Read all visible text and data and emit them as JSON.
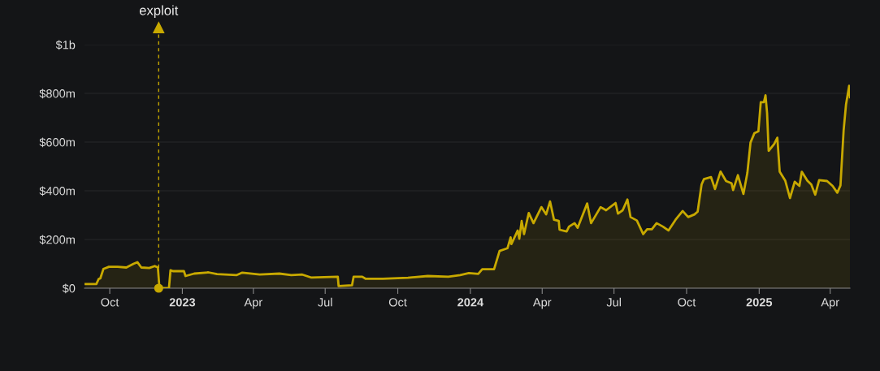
{
  "chart_data": {
    "type": "area",
    "x": [
      "2022-08-31",
      "2022-09-14",
      "2022-09-17",
      "2022-09-19",
      "2022-09-23",
      "2022-09-30",
      "2022-10-11",
      "2022-10-22",
      "2022-10-31",
      "2022-11-05",
      "2022-11-10",
      "2022-11-20",
      "2022-11-27",
      "2022-12-01",
      "2022-12-03",
      "2022-12-15",
      "2022-12-17",
      "2022-12-20",
      "2023-01-03",
      "2023-01-05",
      "2023-01-16",
      "2023-02-03",
      "2023-02-14",
      "2023-03-11",
      "2023-03-18",
      "2023-04-09",
      "2023-05-04",
      "2023-05-19",
      "2023-06-02",
      "2023-06-13",
      "2023-07-17",
      "2023-07-18",
      "2023-08-04",
      "2023-08-06",
      "2023-08-17",
      "2023-08-21",
      "2023-09-12",
      "2023-10-14",
      "2023-11-08",
      "2023-12-04",
      "2023-12-19",
      "2023-12-30",
      "2024-01-11",
      "2024-01-16",
      "2024-01-31",
      "2024-02-07",
      "2024-02-17",
      "2024-02-21",
      "2024-02-22",
      "2024-03-01",
      "2024-03-03",
      "2024-03-06",
      "2024-03-09",
      "2024-03-15",
      "2024-03-21",
      "2024-03-31",
      "2024-04-06",
      "2024-04-11",
      "2024-04-16",
      "2024-04-22",
      "2024-04-23",
      "2024-05-02",
      "2024-05-05",
      "2024-05-12",
      "2024-05-16",
      "2024-05-28",
      "2024-06-02",
      "2024-06-14",
      "2024-06-21",
      "2024-07-03",
      "2024-07-06",
      "2024-07-12",
      "2024-07-18",
      "2024-07-22",
      "2024-07-30",
      "2024-08-07",
      "2024-08-12",
      "2024-08-18",
      "2024-08-24",
      "2024-09-01",
      "2024-09-08",
      "2024-09-17",
      "2024-09-26",
      "2024-10-03",
      "2024-10-11",
      "2024-10-15",
      "2024-10-20",
      "2024-10-23",
      "2024-11-01",
      "2024-11-06",
      "2024-11-13",
      "2024-11-20",
      "2024-11-27",
      "2024-11-29",
      "2024-12-05",
      "2024-12-12",
      "2024-12-17",
      "2024-12-21",
      "2024-12-26",
      "2024-12-31",
      "2025-01-03",
      "2025-01-07",
      "2025-01-09",
      "2025-01-11",
      "2025-01-13",
      "2025-01-20",
      "2025-01-24",
      "2025-01-27",
      "2025-02-03",
      "2025-02-09",
      "2025-02-15",
      "2025-02-21",
      "2025-02-24",
      "2025-03-03",
      "2025-03-08",
      "2025-03-13",
      "2025-03-18",
      "2025-03-28",
      "2025-04-04",
      "2025-04-10",
      "2025-04-14",
      "2025-04-18",
      "2025-04-21",
      "2025-04-25",
      "2025-04-26"
    ],
    "series": [
      {
        "color": "#c8a900",
        "values": [
          17000000.0,
          17000000.0,
          38000000.0,
          40000000.0,
          79000000.0,
          88000000.0,
          88000000.0,
          85000000.0,
          100000000.0,
          107000000.0,
          85000000.0,
          83000000.0,
          91000000.0,
          85000000.0,
          0,
          0,
          74000000.0,
          70000000.0,
          70000000.0,
          50000000.0,
          60000000.0,
          65000000.0,
          58000000.0,
          54000000.0,
          64000000.0,
          56000000.0,
          60000000.0,
          54000000.0,
          56000000.0,
          44000000.0,
          47000000.0,
          9000000.0,
          12000000.0,
          47000000.0,
          47000000.0,
          39000000.0,
          39000000.0,
          43000000.0,
          50000000.0,
          47000000.0,
          54000000.0,
          62000000.0,
          59000000.0,
          78000000.0,
          78000000.0,
          153000000.0,
          164000000.0,
          209000000.0,
          181000000.0,
          237000000.0,
          203000000.0,
          276000000.0,
          222000000.0,
          309000000.0,
          267000000.0,
          333000000.0,
          303000000.0,
          356000000.0,
          281000000.0,
          276000000.0,
          240000000.0,
          233000000.0,
          253000000.0,
          267000000.0,
          248000000.0,
          348000000.0,
          267000000.0,
          333000000.0,
          320000000.0,
          350000000.0,
          306000000.0,
          320000000.0,
          364000000.0,
          292000000.0,
          278000000.0,
          222000000.0,
          242000000.0,
          242000000.0,
          267000000.0,
          253000000.0,
          237000000.0,
          281000000.0,
          317000000.0,
          292000000.0,
          303000000.0,
          314000000.0,
          426000000.0,
          448000000.0,
          456000000.0,
          407000000.0,
          479000000.0,
          440000000.0,
          431000000.0,
          403000000.0,
          464000000.0,
          387000000.0,
          473000000.0,
          598000000.0,
          637000000.0,
          644000000.0,
          764000000.0,
          764000000.0,
          792000000.0,
          720000000.0,
          564000000.0,
          592000000.0,
          618000000.0,
          478000000.0,
          442000000.0,
          370000000.0,
          437000000.0,
          420000000.0,
          478000000.0,
          442000000.0,
          426000000.0,
          384000000.0,
          444000000.0,
          440000000.0,
          420000000.0,
          392000000.0,
          422000000.0,
          648000000.0,
          753000000.0,
          831000000.0,
          784000000.0
        ]
      }
    ],
    "xlim": [
      "2022-08-30",
      "2025-04-26"
    ],
    "xticks": [
      {
        "value": "2022-10-01",
        "label": "Oct"
      },
      {
        "value": "2023-01-01",
        "label": "2023"
      },
      {
        "value": "2023-04-01",
        "label": "Apr"
      },
      {
        "value": "2023-07-01",
        "label": "Jul"
      },
      {
        "value": "2023-10-01",
        "label": "Oct"
      },
      {
        "value": "2024-01-01",
        "label": "2024"
      },
      {
        "value": "2024-04-01",
        "label": "Apr"
      },
      {
        "value": "2024-07-01",
        "label": "Jul"
      },
      {
        "value": "2024-10-01",
        "label": "Oct"
      },
      {
        "value": "2025-01-01",
        "label": "2025"
      },
      {
        "value": "2025-04-01",
        "label": "Apr"
      }
    ],
    "ylim": [
      0,
      1000000000
    ],
    "yticks": [
      {
        "value": 0,
        "label": "$0"
      },
      {
        "value": 200000000,
        "label": "$200m"
      },
      {
        "value": 400000000,
        "label": "$400m"
      },
      {
        "value": 600000000,
        "label": "$600m"
      },
      {
        "value": 800000000,
        "label": "$800m"
      },
      {
        "value": 1000000000,
        "label": "$1b"
      }
    ],
    "grid": "y",
    "ref_lines": [
      {
        "axis": "x",
        "value": "2022-12-02",
        "label": "exploit",
        "color": "#c8a900",
        "line_style": "dashed"
      }
    ]
  }
}
